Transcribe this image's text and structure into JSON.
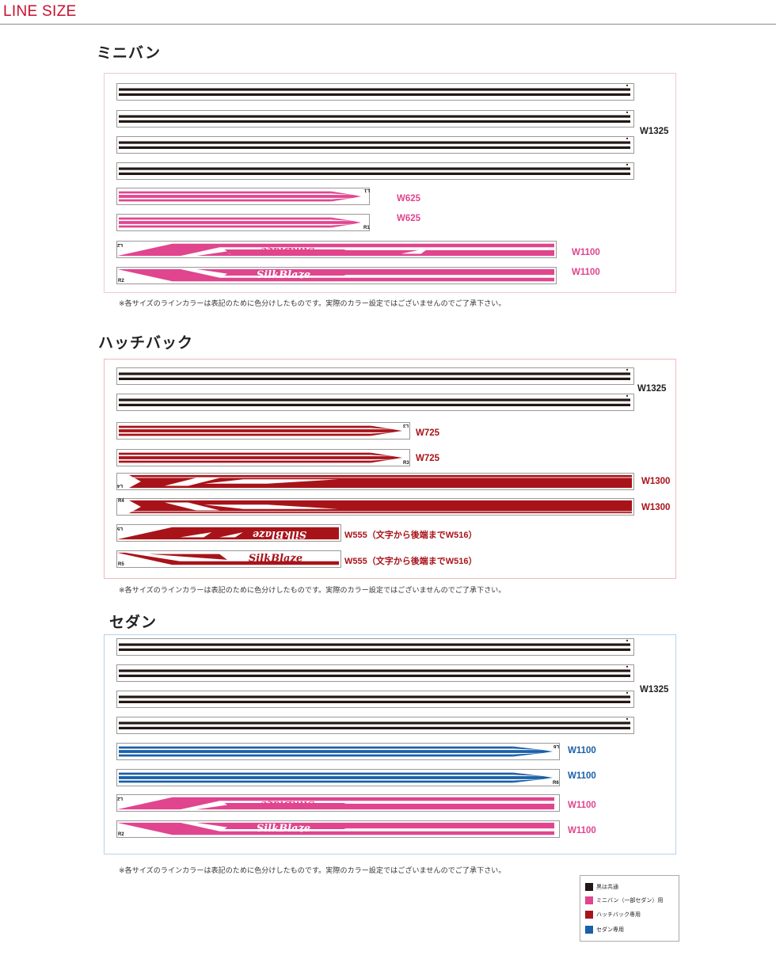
{
  "header": {
    "title": "LINE SIZE"
  },
  "colors": {
    "black": "#231815",
    "pink": "#e0458e",
    "red": "#a8131a",
    "blue": "#1a5fa8"
  },
  "note": "※各サイズのラインカラーは表記のために色分けしたものです。実際のカラー設定ではございませんのでご了承下さい。",
  "sections": {
    "minivan": {
      "title": "ミニバン",
      "w1325": "W1325",
      "tags": {
        "l1": "L1",
        "r1": "R1",
        "l2": "L2",
        "r2": "R2"
      },
      "labels": {
        "w625a": "W625",
        "w625b": "W625",
        "w1100a": "W1100",
        "w1100b": "W1100"
      }
    },
    "hatchback": {
      "title": "ハッチバック",
      "w1325": "W1325",
      "tags": {
        "l3": "L3",
        "r3": "R3",
        "l4": "L4",
        "r4": "R4",
        "l5": "L5",
        "r5": "R5"
      },
      "labels": {
        "w725a": "W725",
        "w725b": "W725",
        "w1300a": "W1300",
        "w1300b": "W1300",
        "w555a": "W555（文字から後端までW516）",
        "w555b": "W555（文字から後端までW516）"
      }
    },
    "sedan": {
      "title": "セダン",
      "w1325": "W1325",
      "tags": {
        "l6": "L6",
        "r6": "R6",
        "l2": "L2",
        "r2": "R2"
      },
      "labels": {
        "w1100a": "W1100",
        "w1100b": "W1100",
        "w1100c": "W1100",
        "w1100d": "W1100"
      }
    }
  },
  "logo_text": "SilkBlaze",
  "legend": [
    {
      "label": "黒は共通",
      "color": "#231815"
    },
    {
      "label": "ミニバン（一部セダン）用",
      "color": "#e0458e"
    },
    {
      "label": "ハッチバック専用",
      "color": "#a8131a"
    },
    {
      "label": "セダン専用",
      "color": "#1a5fa8"
    }
  ]
}
